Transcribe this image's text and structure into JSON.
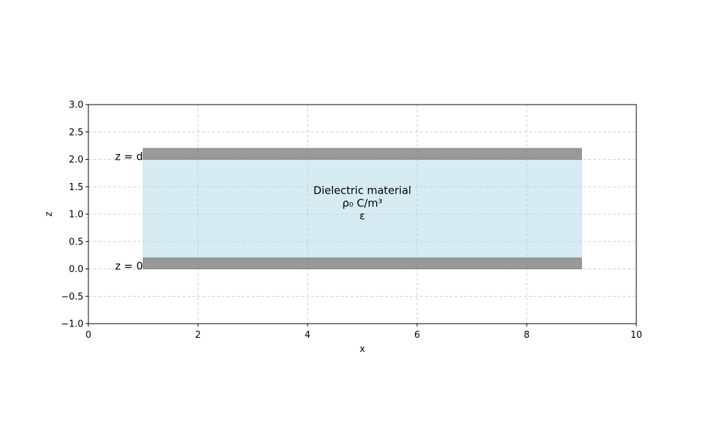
{
  "chart_data": {
    "type": "diagram",
    "title": "",
    "xlabel": "x",
    "ylabel": "z",
    "xlim": [
      0,
      10
    ],
    "ylim": [
      -1.0,
      3.0
    ],
    "xticks": [
      0,
      2,
      4,
      6,
      8,
      10
    ],
    "xtick_labels": [
      "0",
      "2",
      "4",
      "6",
      "8",
      "10"
    ],
    "yticks": [
      -1.0,
      -0.5,
      0.0,
      0.5,
      1.0,
      1.5,
      2.0,
      2.5,
      3.0
    ],
    "ytick_labels": [
      "−1.0",
      "−0.5",
      "0.0",
      "0.5",
      "1.0",
      "1.5",
      "2.0",
      "2.5",
      "3.0"
    ],
    "grid": true,
    "regions": [
      {
        "name": "dielectric",
        "x": [
          1,
          9
        ],
        "z": [
          0.2,
          2.0
        ],
        "color": "#add8e6"
      },
      {
        "name": "bottom-plate",
        "x": [
          1,
          9
        ],
        "z": [
          0.0,
          0.2
        ],
        "color": "#808080"
      },
      {
        "name": "top-plate",
        "x": [
          1,
          9
        ],
        "z": [
          2.0,
          2.2
        ],
        "color": "#808080"
      }
    ],
    "annotations": [
      {
        "name": "top-plate-label",
        "text": "z = d",
        "x": 0.5,
        "z": 2.0
      },
      {
        "name": "bottom-plate-label",
        "text": "z = 0",
        "x": 0.5,
        "z": 0.0
      },
      {
        "name": "dielectric-label",
        "lines": [
          "Dielectric material",
          "ρ₀ C/m³",
          "ε"
        ],
        "x": 5,
        "z": 1.2
      }
    ]
  }
}
